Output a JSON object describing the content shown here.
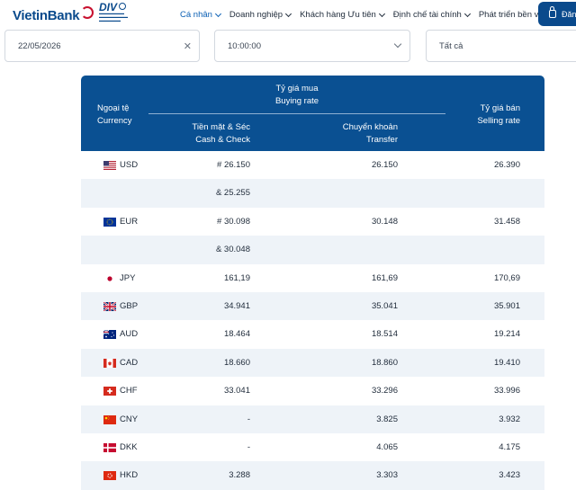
{
  "header": {
    "logo_text": "VietinBank",
    "div_logo_text": "DIV",
    "nav": [
      {
        "label": "Cá nhân",
        "active": true
      },
      {
        "label": "Doanh nghiệp",
        "active": false
      },
      {
        "label": "Khách hàng Ưu tiên",
        "active": false
      },
      {
        "label": "Định chế tài chính",
        "active": false
      },
      {
        "label": "Phát triển bền vững",
        "active": false
      }
    ],
    "login_label": "Đăn"
  },
  "filters": {
    "date": "22/05/2026",
    "time": "10:00:00",
    "currency": "Tất cả"
  },
  "table": {
    "headers": {
      "currency_vi": "Ngoại tệ",
      "currency_en": "Currency",
      "buy_vi": "Tỷ giá mua",
      "buy_en": "Buying rate",
      "cash_vi": "Tiền mặt & Séc",
      "cash_en": "Cash & Check",
      "transfer_vi": "Chuyển khoản",
      "transfer_en": "Transfer",
      "sell_vi": "Tỷ giá bán",
      "sell_en": "Selling rate"
    },
    "rows": [
      {
        "flag": "us-flag",
        "code": "USD",
        "cash": "# 26.150",
        "transfer": "26.150",
        "sell": "26.390"
      },
      {
        "flag": "",
        "code": "",
        "cash": "& 25.255",
        "transfer": "",
        "sell": ""
      },
      {
        "flag": "eu-flag",
        "code": "EUR",
        "cash": "# 30.098",
        "transfer": "30.148",
        "sell": "31.458"
      },
      {
        "flag": "",
        "code": "",
        "cash": "& 30.048",
        "transfer": "",
        "sell": ""
      },
      {
        "flag": "jp-flag",
        "code": "JPY",
        "cash": "161,19",
        "transfer": "161,69",
        "sell": "170,69"
      },
      {
        "flag": "gb-flag",
        "code": "GBP",
        "cash": "34.941",
        "transfer": "35.041",
        "sell": "35.901"
      },
      {
        "flag": "au-flag",
        "code": "AUD",
        "cash": "18.464",
        "transfer": "18.514",
        "sell": "19.214"
      },
      {
        "flag": "ca-flag",
        "code": "CAD",
        "cash": "18.660",
        "transfer": "18.860",
        "sell": "19.410"
      },
      {
        "flag": "ch-flag",
        "code": "CHF",
        "cash": "33.041",
        "transfer": "33.296",
        "sell": "33.996"
      },
      {
        "flag": "cn-flag",
        "code": "CNY",
        "cash": "-",
        "transfer": "3.825",
        "sell": "3.932"
      },
      {
        "flag": "dk-flag",
        "code": "DKK",
        "cash": "-",
        "transfer": "4.065",
        "sell": "4.175"
      },
      {
        "flag": "hk-flag",
        "code": "HKD",
        "cash": "3.288",
        "transfer": "3.303",
        "sell": "3.423"
      }
    ]
  },
  "colors": {
    "brand": "#0a4a8c",
    "header_bg": "#0a5092",
    "alt_row": "#eef3f8",
    "nav_active": "#0a5fb4"
  }
}
